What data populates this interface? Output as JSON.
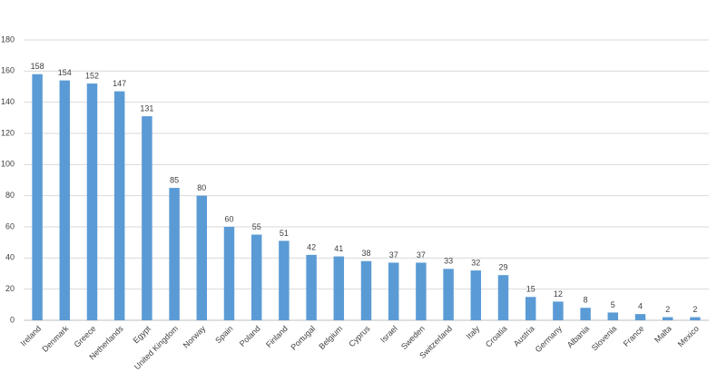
{
  "chart_data": {
    "type": "bar",
    "categories": [
      "Ireland",
      "Denmark",
      "Greece",
      "Netherlands",
      "Egypt",
      "United Kingdom",
      "Norway",
      "Spain",
      "Poland",
      "Finland",
      "Portugal",
      "Belgium",
      "Cyprus",
      "Israel",
      "Sweden",
      "Switzerland",
      "Italy",
      "Croatia",
      "Austria",
      "Germany",
      "Albania",
      "Slovenia",
      "France",
      "Malta",
      "Mexico"
    ],
    "values": [
      158,
      154,
      152,
      147,
      131,
      85,
      80,
      60,
      55,
      51,
      42,
      41,
      38,
      37,
      37,
      33,
      32,
      29,
      15,
      12,
      8,
      5,
      4,
      2,
      2
    ],
    "color": "#5b9bd5",
    "ylim": [
      0,
      180
    ],
    "yticks": [
      0,
      20,
      40,
      60,
      80,
      100,
      120,
      140,
      160,
      180
    ],
    "grid": true
  }
}
